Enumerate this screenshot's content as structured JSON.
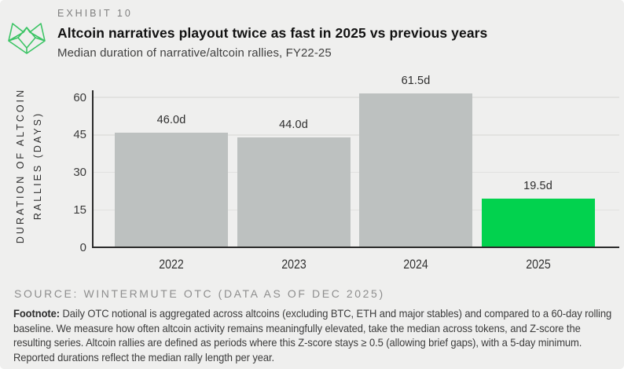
{
  "header": {
    "exhibit": "EXHIBIT 10",
    "title": "Altcoin narratives playout twice as fast in 2025 vs previous years",
    "subtitle": "Median duration of narrative/altcoin rallies, FY22-25"
  },
  "chart_data": {
    "type": "bar",
    "title": "Altcoin narratives playout twice as fast in 2025 vs previous years",
    "subtitle": "Median duration of narrative/altcoin rallies, FY22-25",
    "categories": [
      "2022",
      "2023",
      "2024",
      "2025"
    ],
    "values": [
      46.0,
      44.0,
      61.5,
      19.5
    ],
    "value_labels": [
      "46.0d",
      "44.0d",
      "61.5d",
      "19.5d"
    ],
    "unit": "days",
    "ylabel": "DURATION OF ALTCOIN RALLIES (DAYS)",
    "ylabel_lines": [
      "DURATION OF ALTCOIN",
      "RALLIES (DAYS)"
    ],
    "yticks": [
      0,
      15,
      30,
      45,
      60
    ],
    "ylim": [
      0,
      66
    ],
    "grid": "horizontal",
    "legend_position": "none",
    "bar_colors": [
      "#bdc1c0",
      "#bdc1c0",
      "#bdc1c0",
      "#02d24e"
    ],
    "highlight_category": "2025"
  },
  "colors": {
    "background": "#efefee",
    "bar_gray": "#bdc1c0",
    "bar_green": "#02d24e",
    "logo_green": "#3cc465",
    "axis": "#2b2b2b",
    "gridline": "#e2e2e0"
  },
  "source": "SOURCE: WINTERMUTE OTC (DATA AS OF DEC 2025)",
  "footnote": {
    "prefix": "Footnote:",
    "text": " Daily OTC notional is aggregated across altcoins (excluding BTC, ETH and major stables) and compared to a 60-day rolling baseline. We measure how often altcoin activity remains meaningfully elevated, take the median across tokens, and Z-score the resulting series. Altcoin rallies are defined as periods where this Z-score stays ≥ 0.5 (allowing brief gaps), with a 5-day minimum. Reported durations reflect the median rally length per year."
  }
}
